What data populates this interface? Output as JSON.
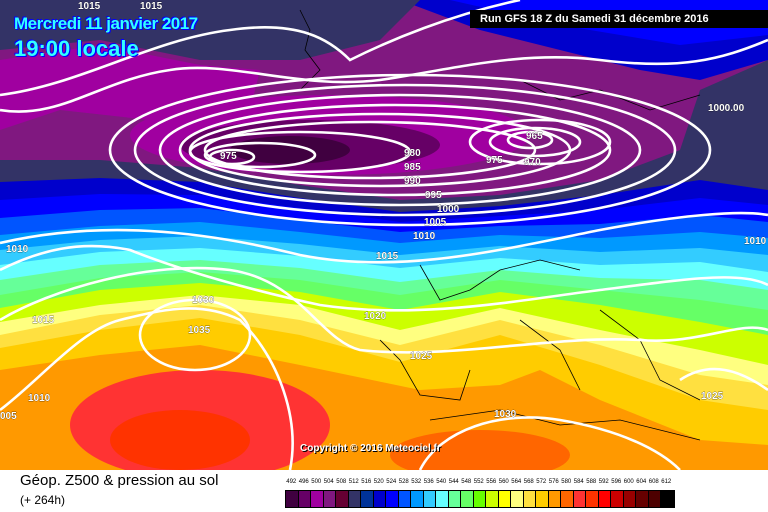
{
  "header": {
    "date": "Mercredi 11 janvier 2017",
    "time": "19:00 locale",
    "run": "Run GFS 18 Z du Samedi 31 décembre 2016"
  },
  "map": {
    "copyright": "Copyright © 2016 Meteociel.fr",
    "isobar_labels": [
      "1015",
      "1015",
      "975",
      "980",
      "985",
      "990",
      "995",
      "1000",
      "1005",
      "1010",
      "1015",
      "965",
      "970",
      "975",
      "1000.00",
      "1010",
      "1010",
      "1010",
      "1030",
      "1035",
      "1015",
      "1020",
      "1025",
      "1010",
      "005",
      "1030",
      "1025"
    ]
  },
  "footer": {
    "title": "Géop. Z500 & pression au sol",
    "forecast": "(+ 264h)",
    "legend": {
      "values": [
        "492",
        "496",
        "500",
        "504",
        "508",
        "512",
        "516",
        "520",
        "524",
        "528",
        "532",
        "536",
        "540",
        "544",
        "548",
        "552",
        "556",
        "560",
        "564",
        "568",
        "572",
        "576",
        "580",
        "584",
        "588",
        "592",
        "596",
        "600",
        "604",
        "608",
        "612"
      ],
      "colors": [
        "#400040",
        "#660066",
        "#a000a0",
        "#801880",
        "#660033",
        "#333366",
        "#003399",
        "#0000cc",
        "#0000ff",
        "#0055ff",
        "#0099ff",
        "#33ccff",
        "#66ffff",
        "#66ff99",
        "#66ff66",
        "#66ff00",
        "#ccff00",
        "#ffff00",
        "#ffff80",
        "#ffe040",
        "#ffcc00",
        "#ff9900",
        "#ff6600",
        "#ff3333",
        "#ff3300",
        "#ff0000",
        "#cc0000",
        "#990000",
        "#660000",
        "#4d0000",
        "#000000"
      ]
    }
  }
}
